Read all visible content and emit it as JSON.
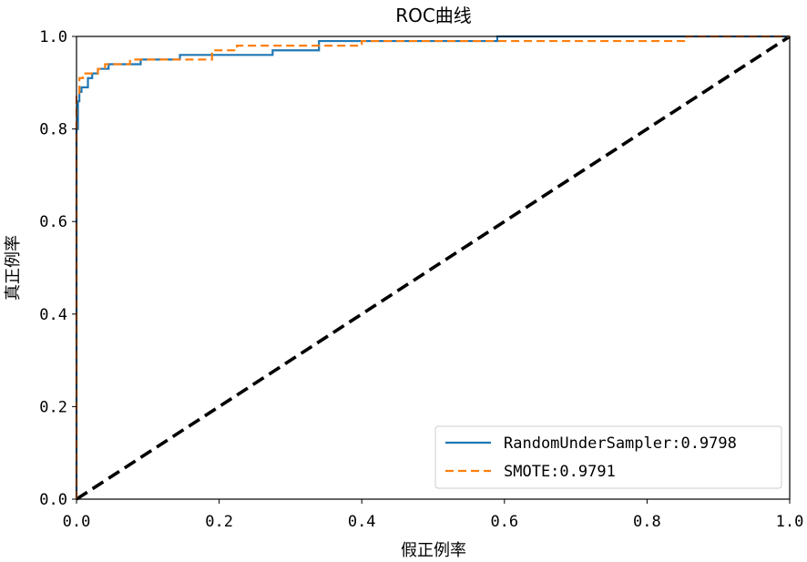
{
  "chart_data": {
    "type": "line",
    "title": "ROC曲线",
    "xlabel": "假正例率",
    "ylabel": "真正例率",
    "xlim": [
      0.0,
      1.0
    ],
    "ylim": [
      0.0,
      1.0
    ],
    "xticks": [
      "0.0",
      "0.2",
      "0.4",
      "0.6",
      "0.8",
      "1.0"
    ],
    "yticks": [
      "0.0",
      "0.2",
      "0.4",
      "0.6",
      "0.8",
      "1.0"
    ],
    "grid": false,
    "legend_position": "lower-right",
    "series": [
      {
        "name": "RandomUnderSampler:0.9798",
        "color": "#1f77b4",
        "style": "solid",
        "x": [
          0.0,
          0.0,
          0.002,
          0.002,
          0.004,
          0.004,
          0.007,
          0.007,
          0.016,
          0.016,
          0.022,
          0.022,
          0.03,
          0.03,
          0.045,
          0.045,
          0.09,
          0.09,
          0.145,
          0.145,
          0.19,
          0.19,
          0.275,
          0.275,
          0.34,
          0.34,
          0.59,
          0.59,
          1.0
        ],
        "y": [
          0.0,
          0.8,
          0.8,
          0.86,
          0.86,
          0.88,
          0.88,
          0.89,
          0.89,
          0.91,
          0.91,
          0.92,
          0.92,
          0.93,
          0.93,
          0.94,
          0.94,
          0.95,
          0.95,
          0.96,
          0.96,
          0.96,
          0.96,
          0.97,
          0.97,
          0.99,
          0.99,
          1.0,
          1.0
        ]
      },
      {
        "name": "SMOTE:0.9791",
        "color": "#ff7f0e",
        "style": "dashed",
        "x": [
          0.0,
          0.0,
          0.004,
          0.004,
          0.009,
          0.009,
          0.018,
          0.018,
          0.03,
          0.03,
          0.04,
          0.04,
          0.075,
          0.075,
          0.19,
          0.19,
          0.225,
          0.225,
          0.4,
          0.4,
          0.855,
          0.855,
          1.0
        ],
        "y": [
          0.0,
          0.87,
          0.87,
          0.91,
          0.91,
          0.92,
          0.92,
          0.92,
          0.92,
          0.93,
          0.93,
          0.94,
          0.94,
          0.95,
          0.95,
          0.97,
          0.97,
          0.98,
          0.98,
          0.99,
          0.99,
          1.0,
          1.0
        ]
      },
      {
        "name": "",
        "color": "#000000",
        "style": "dashed-thick",
        "x": [
          0.0,
          1.0
        ],
        "y": [
          0.0,
          1.0
        ]
      }
    ]
  }
}
